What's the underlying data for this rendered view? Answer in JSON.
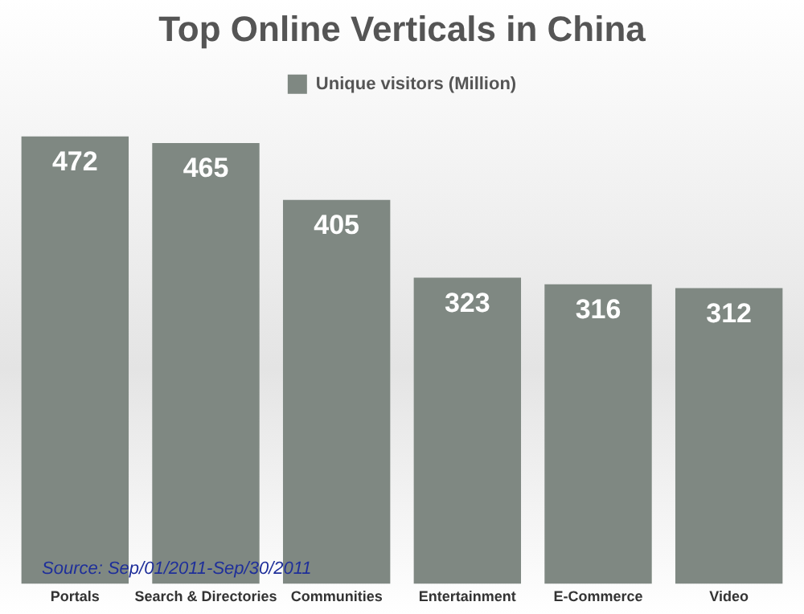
{
  "chart_data": {
    "type": "bar",
    "title": "Top Online Verticals in China",
    "categories": [
      "Portals",
      "Search & Directories",
      "Communities",
      "Entertainment",
      "E-Commerce",
      "Video"
    ],
    "series": [
      {
        "name": "Unique visitors (Million)",
        "color": "#7f8882",
        "values": [
          472,
          465,
          405,
          323,
          316,
          312
        ]
      }
    ],
    "tick_labels": "x",
    "grid": false,
    "legend": "top",
    "data_labels": true,
    "annotations": [
      "Source: Sep/01/2011-Sep/30/2011"
    ]
  }
}
